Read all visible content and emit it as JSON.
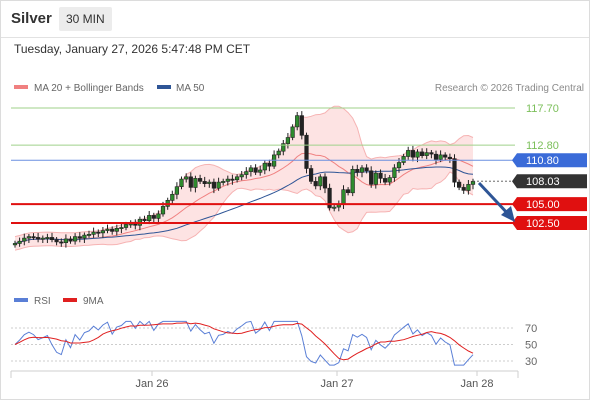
{
  "header": {
    "instrument": "Silver",
    "timeframe": "30 MIN"
  },
  "datetime": "Tuesday, January 27, 2026 5:47:48 PM CET",
  "legend_main": [
    {
      "label": "MA 20 + Bollinger Bands",
      "color": "#f08080"
    },
    {
      "label": "MA 50",
      "color": "#2e5596"
    }
  ],
  "copyright": "Research © 2026 Trading Central",
  "legend_rsi": [
    {
      "label": "RSI",
      "color": "#5a7fd6"
    },
    {
      "label": "9MA",
      "color": "#e02020"
    }
  ],
  "chart_data": [
    {
      "type": "candlestick",
      "y_range": [
        99.5,
        120.0
      ],
      "x_ticks": [
        "Jan 26",
        "Jan 27",
        "Jan 28"
      ],
      "levels": [
        {
          "label": "117.70",
          "value": 117.7,
          "color": "#7bbf5a",
          "kind": "resistance"
        },
        {
          "label": "112.80",
          "value": 112.8,
          "color": "#7bbf5a",
          "kind": "resistance"
        },
        {
          "label": "110.80",
          "value": 110.8,
          "color": "#3a6bd8",
          "kind": "pivot"
        },
        {
          "label": "108.03",
          "value": 108.03,
          "color": "#333333",
          "kind": "last"
        },
        {
          "label": "105.00",
          "value": 105.0,
          "color": "#e01010",
          "kind": "support"
        },
        {
          "label": "102.50",
          "value": 102.5,
          "color": "#e01010",
          "kind": "support"
        }
      ],
      "close_path": [
        99.8,
        100.1,
        100.5,
        100.7,
        100.6,
        100.4,
        100.5,
        100.6,
        100.3,
        100.0,
        99.9,
        100.4,
        100.1,
        100.7,
        100.5,
        100.9,
        101.0,
        101.3,
        101.2,
        101.5,
        101.7,
        101.4,
        101.8,
        101.9,
        102.3,
        102.4,
        102.2,
        103.0,
        102.8,
        103.5,
        103.1,
        103.7,
        104.7,
        105.5,
        106.3,
        107.3,
        108.3,
        108.6,
        107.2,
        108.4,
        108.0,
        107.7,
        107.9,
        107.1,
        107.9,
        108.0,
        108.3,
        108.2,
        108.6,
        108.9,
        109.3,
        109.8,
        109.2,
        109.5,
        110.4,
        110.0,
        111.5,
        112.0,
        113.0,
        113.8,
        115.2,
        116.7,
        114.1,
        109.7,
        108.0,
        107.4,
        108.6,
        107.1,
        104.5,
        104.6,
        105.0,
        106.9,
        106.5,
        109.6,
        109.2,
        109.8,
        109.4,
        107.6,
        109.1,
        108.4,
        107.9,
        108.5,
        109.8,
        110.5,
        111.3,
        112.1,
        111.2,
        111.9,
        111.4,
        111.8,
        111.6,
        110.9,
        111.5,
        111.2,
        111.0,
        107.9,
        107.2,
        106.8,
        107.6,
        108.0
      ]
    },
    {
      "type": "line",
      "title": "RSI",
      "series": [
        {
          "name": "RSI"
        },
        {
          "name": "9MA"
        }
      ],
      "y_ticks": [
        70,
        50,
        30
      ],
      "y_range": [
        10,
        80
      ]
    }
  ]
}
